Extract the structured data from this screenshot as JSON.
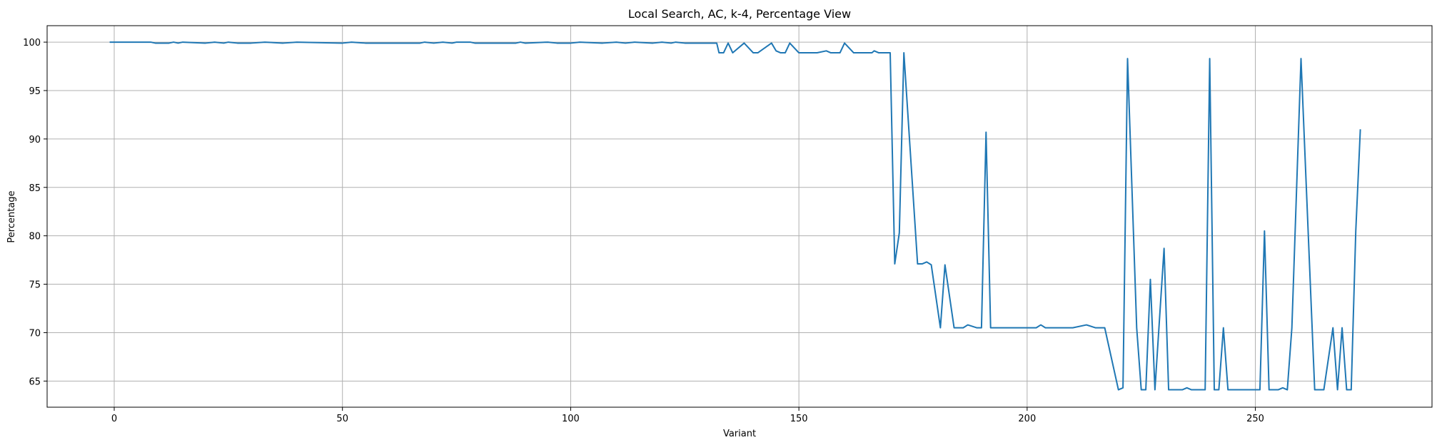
{
  "chart_data": {
    "type": "line",
    "title": "Local Search, AC, k-4, Percentage View",
    "xlabel": "Variant",
    "ylabel": "Percentage",
    "xlim": [
      -14.7,
      288.7
    ],
    "ylim": [
      62.3,
      101.7
    ],
    "xticks": [
      0,
      50,
      100,
      150,
      200,
      250
    ],
    "yticks": [
      65,
      70,
      75,
      80,
      85,
      90,
      95,
      100
    ],
    "grid": true,
    "series": [
      {
        "color": "#1f77b4",
        "points": [
          [
            -1,
            100.0
          ],
          [
            2,
            100.0
          ],
          [
            5,
            100.0
          ],
          [
            8,
            100.0
          ],
          [
            9,
            99.9
          ],
          [
            12,
            99.9
          ],
          [
            13,
            100.0
          ],
          [
            14,
            99.9
          ],
          [
            15,
            100.0
          ],
          [
            20,
            99.9
          ],
          [
            22,
            100.0
          ],
          [
            24,
            99.9
          ],
          [
            25,
            100.0
          ],
          [
            27,
            99.9
          ],
          [
            30,
            99.9
          ],
          [
            33,
            100.0
          ],
          [
            37,
            99.9
          ],
          [
            40,
            100.0
          ],
          [
            50,
            99.9
          ],
          [
            52,
            100.0
          ],
          [
            55,
            99.9
          ],
          [
            60,
            99.9
          ],
          [
            67,
            99.9
          ],
          [
            68,
            100.0
          ],
          [
            70,
            99.9
          ],
          [
            72,
            100.0
          ],
          [
            74,
            99.9
          ],
          [
            75,
            100.0
          ],
          [
            78,
            100.0
          ],
          [
            79,
            99.9
          ],
          [
            88,
            99.9
          ],
          [
            89,
            100.0
          ],
          [
            90,
            99.9
          ],
          [
            95,
            100.0
          ],
          [
            97,
            99.9
          ],
          [
            100,
            99.9
          ],
          [
            102,
            100.0
          ],
          [
            107,
            99.9
          ],
          [
            110,
            100.0
          ],
          [
            112,
            99.9
          ],
          [
            114,
            100.0
          ],
          [
            118,
            99.9
          ],
          [
            120,
            100.0
          ],
          [
            122,
            99.9
          ],
          [
            123,
            100.0
          ],
          [
            125,
            99.9
          ],
          [
            130,
            99.9
          ],
          [
            132,
            99.9
          ],
          [
            132.5,
            98.9
          ],
          [
            133.5,
            98.9
          ],
          [
            134.5,
            99.9
          ],
          [
            135.5,
            98.9
          ],
          [
            138,
            99.9
          ],
          [
            140,
            98.9
          ],
          [
            141,
            98.9
          ],
          [
            144,
            99.9
          ],
          [
            145,
            99.1
          ],
          [
            146,
            98.9
          ],
          [
            147,
            98.9
          ],
          [
            148,
            99.9
          ],
          [
            150,
            98.9
          ],
          [
            154,
            98.9
          ],
          [
            156,
            99.1
          ],
          [
            157,
            98.9
          ],
          [
            159,
            98.9
          ],
          [
            160,
            99.9
          ],
          [
            162,
            98.9
          ],
          [
            166,
            98.9
          ],
          [
            166.5,
            99.1
          ],
          [
            167.5,
            98.9
          ],
          [
            170,
            98.9
          ],
          [
            171,
            77.1
          ],
          [
            172,
            80.3
          ],
          [
            173,
            98.9
          ],
          [
            176,
            77.1
          ],
          [
            177,
            77.1
          ],
          [
            178,
            77.3
          ],
          [
            179,
            77.0
          ],
          [
            181,
            70.5
          ],
          [
            182,
            77.0
          ],
          [
            184,
            70.5
          ],
          [
            186,
            70.5
          ],
          [
            187,
            70.8
          ],
          [
            189,
            70.5
          ],
          [
            190,
            70.5
          ],
          [
            191,
            90.7
          ],
          [
            192,
            70.5
          ],
          [
            202,
            70.5
          ],
          [
            203,
            70.8
          ],
          [
            204,
            70.5
          ],
          [
            210,
            70.5
          ],
          [
            213,
            70.8
          ],
          [
            215,
            70.5
          ],
          [
            217,
            70.5
          ],
          [
            220,
            64.1
          ],
          [
            221,
            64.3
          ],
          [
            222,
            98.3
          ],
          [
            224,
            70.5
          ],
          [
            225,
            64.1
          ],
          [
            226,
            64.1
          ],
          [
            227,
            75.5
          ],
          [
            228,
            64.1
          ],
          [
            230,
            78.7
          ],
          [
            231,
            64.1
          ],
          [
            234,
            64.1
          ],
          [
            235,
            64.3
          ],
          [
            236,
            64.1
          ],
          [
            239,
            64.1
          ],
          [
            240,
            98.3
          ],
          [
            241,
            64.1
          ],
          [
            242,
            64.1
          ],
          [
            243,
            70.5
          ],
          [
            244,
            64.1
          ],
          [
            247,
            64.1
          ],
          [
            251,
            64.1
          ],
          [
            252,
            80.5
          ],
          [
            253,
            64.1
          ],
          [
            255,
            64.1
          ],
          [
            256,
            64.3
          ],
          [
            257,
            64.1
          ],
          [
            258,
            70.5
          ],
          [
            260,
            98.3
          ],
          [
            263,
            64.1
          ],
          [
            265,
            64.1
          ],
          [
            267,
            70.5
          ],
          [
            268,
            64.1
          ],
          [
            269,
            70.5
          ],
          [
            270,
            64.1
          ],
          [
            271,
            64.1
          ],
          [
            272,
            80.5
          ],
          [
            273,
            91.0
          ]
        ]
      }
    ]
  }
}
